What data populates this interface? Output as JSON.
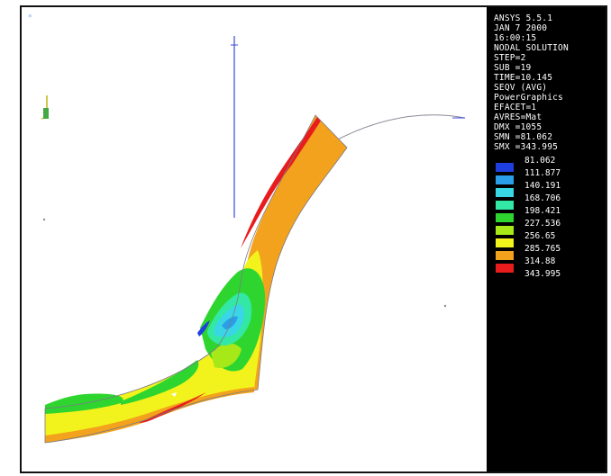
{
  "legend_panel": {
    "header_lines": [
      "ANSYS 5.5.1",
      "JAN  7 2000",
      "16:00:15",
      "NODAL SOLUTION",
      "STEP=2",
      "SUB =19",
      "TIME=10.145",
      "SEQV     (AVG)",
      "PowerGraphics",
      "EFACET=1",
      "AVRES=Mat",
      "DMX =1055",
      "SMN =81.062",
      "SMX =343.995"
    ],
    "contour_levels": [
      "81.062",
      "111.877",
      "140.191",
      "168.706",
      "198.421",
      "227.536",
      "256.65",
      "285.765",
      "314.88",
      "343.995"
    ],
    "contour_colors": [
      "#1f3fe0",
      "#2a9ee8",
      "#39d6e6",
      "#33e8a4",
      "#2fd52f",
      "#a6e818",
      "#f2f21c",
      "#f2a21c",
      "#e81c1c"
    ]
  },
  "colors": {
    "background": "#ffffff",
    "panel": "#000000",
    "outline": "#8c8c9a",
    "axis": "#3a4bd8",
    "triad_y": "#d4c64b",
    "triad_z": "#44a844"
  }
}
